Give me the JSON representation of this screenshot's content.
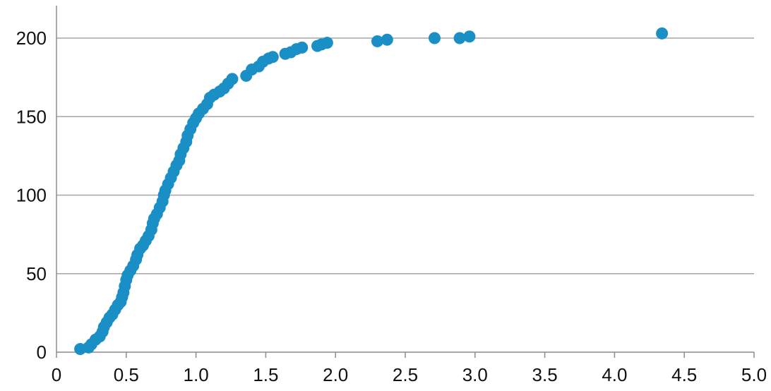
{
  "chart_data": {
    "type": "scatter",
    "title": "",
    "xlabel": "",
    "ylabel": "",
    "xlim": [
      0,
      5
    ],
    "ylim": [
      0,
      200
    ],
    "grid": {
      "y_major": true,
      "x_major": false
    },
    "legend": "none",
    "marker_color": "#1a8fc6",
    "x_ticks": [
      "0",
      "0.5",
      "1.0",
      "1.5",
      "2.0",
      "2.5",
      "3.0",
      "3.5",
      "4.0",
      "4.5",
      "5.0"
    ],
    "x_tick_values": [
      0,
      0.5,
      1.0,
      1.5,
      2.0,
      2.5,
      3.0,
      3.5,
      4.0,
      4.5,
      5.0
    ],
    "y_ticks": [
      "0",
      "50",
      "100",
      "150",
      "200"
    ],
    "y_tick_values": [
      0,
      50,
      100,
      150,
      200
    ],
    "series": [
      {
        "points": [
          [
            0.17,
            2
          ],
          [
            0.23,
            3
          ],
          [
            0.25,
            5
          ],
          [
            0.28,
            8
          ],
          [
            0.31,
            10
          ],
          [
            0.33,
            13
          ],
          [
            0.34,
            16
          ],
          [
            0.36,
            19
          ],
          [
            0.38,
            22
          ],
          [
            0.4,
            24
          ],
          [
            0.42,
            27
          ],
          [
            0.44,
            30
          ],
          [
            0.46,
            32
          ],
          [
            0.47,
            35
          ],
          [
            0.48,
            38
          ],
          [
            0.49,
            42
          ],
          [
            0.5,
            46
          ],
          [
            0.51,
            49
          ],
          [
            0.53,
            52
          ],
          [
            0.55,
            55
          ],
          [
            0.57,
            59
          ],
          [
            0.58,
            62
          ],
          [
            0.6,
            66
          ],
          [
            0.62,
            68
          ],
          [
            0.64,
            71
          ],
          [
            0.66,
            74
          ],
          [
            0.68,
            78
          ],
          [
            0.69,
            82
          ],
          [
            0.7,
            85
          ],
          [
            0.72,
            88
          ],
          [
            0.74,
            92
          ],
          [
            0.76,
            96
          ],
          [
            0.77,
            100
          ],
          [
            0.78,
            103
          ],
          [
            0.8,
            107
          ],
          [
            0.82,
            111
          ],
          [
            0.84,
            115
          ],
          [
            0.86,
            119
          ],
          [
            0.88,
            122
          ],
          [
            0.89,
            126
          ],
          [
            0.91,
            130
          ],
          [
            0.93,
            134
          ],
          [
            0.94,
            138
          ],
          [
            0.96,
            142
          ],
          [
            0.98,
            146
          ],
          [
            1.0,
            149
          ],
          [
            1.02,
            152
          ],
          [
            1.05,
            155
          ],
          [
            1.08,
            158
          ],
          [
            1.1,
            162
          ],
          [
            1.13,
            164
          ],
          [
            1.17,
            166
          ],
          [
            1.2,
            168
          ],
          [
            1.23,
            171
          ],
          [
            1.26,
            174
          ],
          [
            1.36,
            176
          ],
          [
            1.4,
            180
          ],
          [
            1.45,
            182
          ],
          [
            1.48,
            185
          ],
          [
            1.52,
            187
          ],
          [
            1.55,
            188
          ],
          [
            1.64,
            190
          ],
          [
            1.68,
            191
          ],
          [
            1.72,
            193
          ],
          [
            1.76,
            194
          ],
          [
            1.87,
            195
          ],
          [
            1.9,
            196
          ],
          [
            1.94,
            197
          ],
          [
            2.3,
            198
          ],
          [
            2.37,
            199
          ],
          [
            2.71,
            200
          ],
          [
            2.89,
            200
          ],
          [
            2.96,
            201
          ],
          [
            4.34,
            203
          ]
        ]
      }
    ]
  }
}
